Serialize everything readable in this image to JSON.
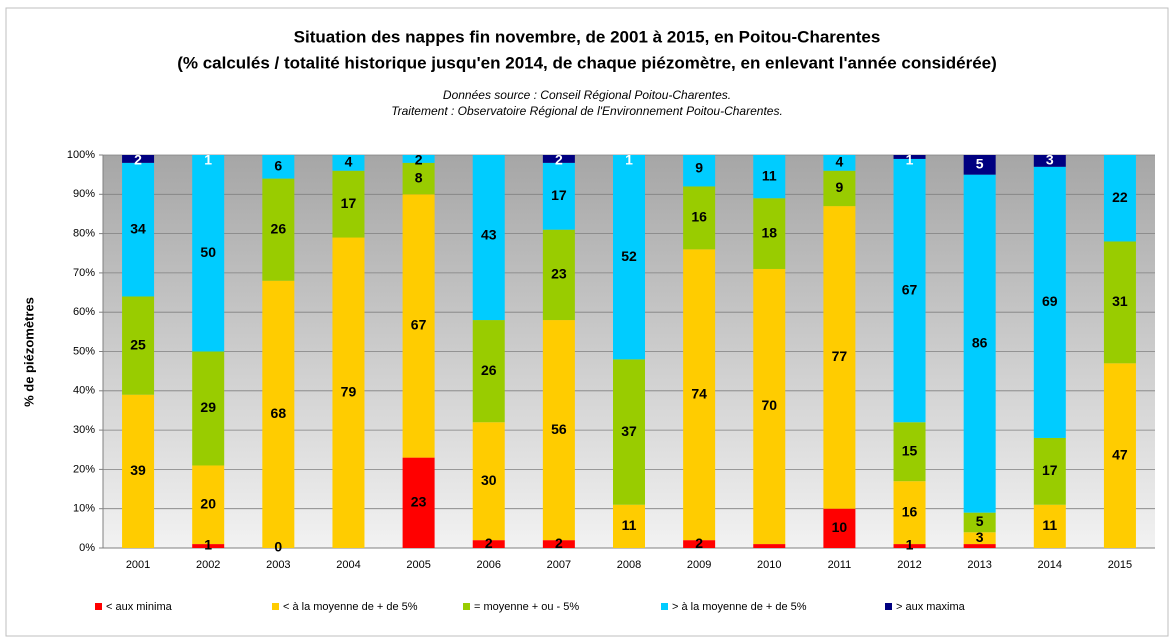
{
  "chart_data": {
    "type": "stacked_bar",
    "title": "Situation des nappes fin novembre, de 2001 à 2015, en Poitou-Charentes",
    "subtitle": "(% calculés / totalité historique jusqu'en 2014, de chaque piézomètre,  en enlevant l'année considérée)",
    "source_lines": [
      "Données source : Conseil Régional Poitou-Charentes.",
      "Traitement : Observatoire Régional de l'Environnement Poitou-Charentes."
    ],
    "y_label": "% de piézomètres",
    "categories": [
      "2001",
      "2002",
      "2003",
      "2004",
      "2005",
      "2006",
      "2007",
      "2008",
      "2009",
      "2010",
      "2011",
      "2012",
      "2013",
      "2014",
      "2015"
    ],
    "ylim": [
      0,
      100
    ],
    "yticks": [
      {
        "value": 0,
        "label": "0%"
      },
      {
        "value": 10,
        "label": "10%"
      },
      {
        "value": 20,
        "label": "20%"
      },
      {
        "value": 30,
        "label": "30%"
      },
      {
        "value": 40,
        "label": "40%"
      },
      {
        "value": 50,
        "label": "50%"
      },
      {
        "value": 60,
        "label": "60%"
      },
      {
        "value": 70,
        "label": "70%"
      },
      {
        "value": 80,
        "label": "80%"
      },
      {
        "value": 90,
        "label": "90%"
      },
      {
        "value": 100,
        "label": "100%"
      }
    ],
    "grid": true,
    "series": [
      {
        "name": "< aux minima",
        "color": "#ff0000",
        "label_color": "#000000",
        "values": [
          0,
          1,
          0,
          0,
          23,
          2,
          2,
          0,
          2,
          1,
          10,
          1,
          1,
          0,
          0
        ],
        "value_labels": [
          null,
          "1",
          "0",
          null,
          "23",
          "2",
          "2",
          null,
          "2",
          null,
          "10",
          "1",
          null,
          null,
          null
        ]
      },
      {
        "name": "< à la moyenne de + de 5%",
        "color": "#ffcc00",
        "label_color": "#000000",
        "values": [
          39,
          20,
          68,
          79,
          67,
          30,
          56,
          11,
          74,
          70,
          77,
          16,
          3,
          11,
          47
        ],
        "value_labels": [
          "39",
          "20",
          "68",
          "79",
          "67",
          "30",
          "56",
          "11",
          "74",
          "70",
          "77",
          "16",
          "3",
          "11",
          "47"
        ]
      },
      {
        "name": "= moyenne + ou - 5%",
        "color": "#99cc00",
        "label_color": "#000000",
        "values": [
          25,
          29,
          26,
          17,
          8,
          26,
          23,
          37,
          16,
          18,
          9,
          15,
          5,
          17,
          31
        ],
        "value_labels": [
          "25",
          "29",
          "26",
          "17",
          "8",
          "26",
          "23",
          "37",
          "16",
          "18",
          "9",
          "15",
          "5",
          "17",
          "31"
        ]
      },
      {
        "name": "> à la moyenne de + de 5%",
        "color": "#00ccff",
        "label_color": "#000000",
        "values": [
          34,
          50,
          6,
          4,
          2,
          43,
          17,
          52,
          9,
          11,
          4,
          67,
          86,
          69,
          22
        ],
        "value_labels": [
          "34",
          "50",
          "6",
          "4",
          "2",
          "43",
          "17",
          "52",
          "9",
          "11",
          "4",
          "67",
          "86",
          "69",
          "22"
        ]
      },
      {
        "name": "> aux maxima",
        "color": "#000080",
        "label_color": "#ffffff",
        "values": [
          2,
          1,
          0,
          0,
          1,
          0,
          2,
          1,
          0,
          0,
          0,
          1,
          5,
          3,
          0
        ],
        "value_labels": [
          "2",
          "1",
          null,
          null,
          null,
          null,
          "2",
          "1",
          null,
          null,
          null,
          "1",
          "5",
          "3",
          null
        ]
      }
    ]
  }
}
